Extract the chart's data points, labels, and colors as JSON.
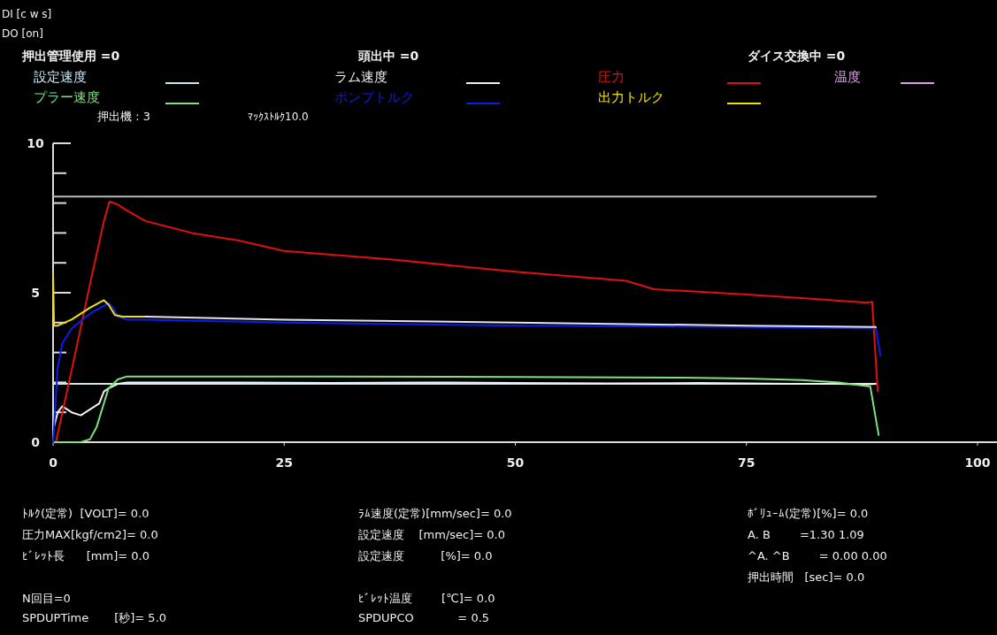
{
  "chart_data": {
    "type": "line",
    "xlim": [
      0,
      100
    ],
    "xticks": [
      0,
      25,
      50,
      75,
      100
    ],
    "ylim": [
      0,
      10
    ],
    "yticks": [
      0,
      {
        "value": 1,
        "label": null
      },
      {
        "value": 2,
        "label": null
      },
      {
        "value": 3,
        "label": null
      },
      {
        "value": 4,
        "label": null
      },
      5,
      {
        "value": 6,
        "label": null
      },
      {
        "value": 7,
        "label": null
      },
      {
        "value": 8,
        "label": null
      },
      {
        "value": 9,
        "label": null
      },
      10
    ],
    "grid": false,
    "legend": "top",
    "marker": "none",
    "line_style": "solid",
    "series": [
      {
        "name": "設定速度",
        "color": "#c8e8f4",
        "x": [
          0,
          89
        ],
        "values": [
          1.95,
          1.95
        ]
      },
      {
        "name": "ラム速度",
        "color": "#f0f0f0",
        "x": [
          0,
          0.5,
          1,
          2,
          3,
          4,
          5,
          5.5,
          6,
          7,
          8,
          12,
          20,
          30,
          40,
          50,
          60,
          70,
          80,
          85,
          88,
          89
        ],
        "values": [
          0.4,
          1.0,
          1.2,
          1.0,
          0.9,
          1.1,
          1.3,
          1.7,
          1.8,
          1.95,
          2.0,
          2.0,
          2.0,
          1.98,
          2.0,
          1.98,
          1.97,
          1.98,
          1.95,
          1.95,
          1.93,
          1.95
        ]
      },
      {
        "name": "圧力",
        "color": "#e01010",
        "x": [
          0.3,
          2,
          4,
          5.5,
          6.1,
          7,
          8,
          10,
          15,
          20,
          25,
          37,
          50,
          62,
          65,
          75,
          82,
          88,
          88.6,
          89.2
        ],
        "values": [
          0,
          2.4,
          5.3,
          7.4,
          8.05,
          7.95,
          7.75,
          7.4,
          7.0,
          6.75,
          6.4,
          6.1,
          5.7,
          5.4,
          5.12,
          4.94,
          4.8,
          4.67,
          4.7,
          1.7
        ]
      },
      {
        "name": "温度",
        "color": "#d8a0e0"
      },
      {
        "name": "プラー速度",
        "color": "#80e080",
        "x": [
          0,
          3,
          4,
          4.7,
          5.5,
          6,
          7,
          8,
          10,
          30,
          50,
          68,
          75,
          81,
          85,
          88.4,
          89.3
        ],
        "values": [
          0,
          0,
          0.1,
          0.5,
          1.3,
          1.8,
          2.1,
          2.2,
          2.2,
          2.2,
          2.18,
          2.16,
          2.13,
          2.08,
          2.0,
          1.86,
          0.24
        ]
      },
      {
        "name": "ポンプトルク",
        "color": "#0a1ef0",
        "x": [
          0,
          0.5,
          1,
          2,
          4,
          6,
          6.5,
          7,
          8,
          10,
          25,
          50,
          75,
          89,
          89.5
        ],
        "values": [
          0,
          2.5,
          3.3,
          3.8,
          4.3,
          4.65,
          4.5,
          4.2,
          4.1,
          4.1,
          4.0,
          3.9,
          3.85,
          3.8,
          2.9
        ]
      },
      {
        "name": "出力トルク",
        "color": "#f0e010",
        "x": [
          0,
          0.1,
          0.5,
          2,
          4,
          5.5,
          6,
          6.7,
          7.5,
          10
        ],
        "values": [
          5.6,
          3.9,
          3.9,
          4.1,
          4.5,
          4.75,
          4.6,
          4.25,
          4.2,
          4.2
        ]
      },
      {
        "color": "#e4e4e4",
        "x": [
          10,
          25,
          50,
          75,
          89
        ],
        "values": [
          4.2,
          4.1,
          4.0,
          3.9,
          3.85
        ]
      },
      {
        "color": "#b8b8b8",
        "x": [
          0,
          89
        ],
        "values": [
          8.22,
          8.22
        ]
      }
    ],
    "annotations": [
      "DI [c w s]",
      "DO [on]",
      "押出管理使用 =0",
      "頭出中 =0",
      "ダイス交換中 =0",
      "押出機 : 3",
      "ﾏｯｸｽﾄﾙｸ10.0",
      "ﾄﾙｸ(定常)  [VOLT]= 0.0",
      "圧力MAX[kgf/cm2]= 0.0",
      "ﾋﾞﾚｯﾄ長      [mm]= 0.0",
      "N回目=0",
      "SPDUPTime       [秒]= 5.0",
      "ﾗﾑ速度(定常)[mm/sec]= 0.0",
      "設定速度    [mm/sec]= 0.0",
      "設定速度          [%]= 0.0",
      "ﾋﾞﾚｯﾄ温度        [℃]= 0.0",
      "SPDUPCO            = 0.5",
      "ﾎﾞﾘｭｰﾑ(定常)[%]= 0.0",
      "A. B        =1.30 1.09",
      "^A. ^B        = 0.00 0.00",
      "押出時間   [sec]= 0.0"
    ]
  }
}
